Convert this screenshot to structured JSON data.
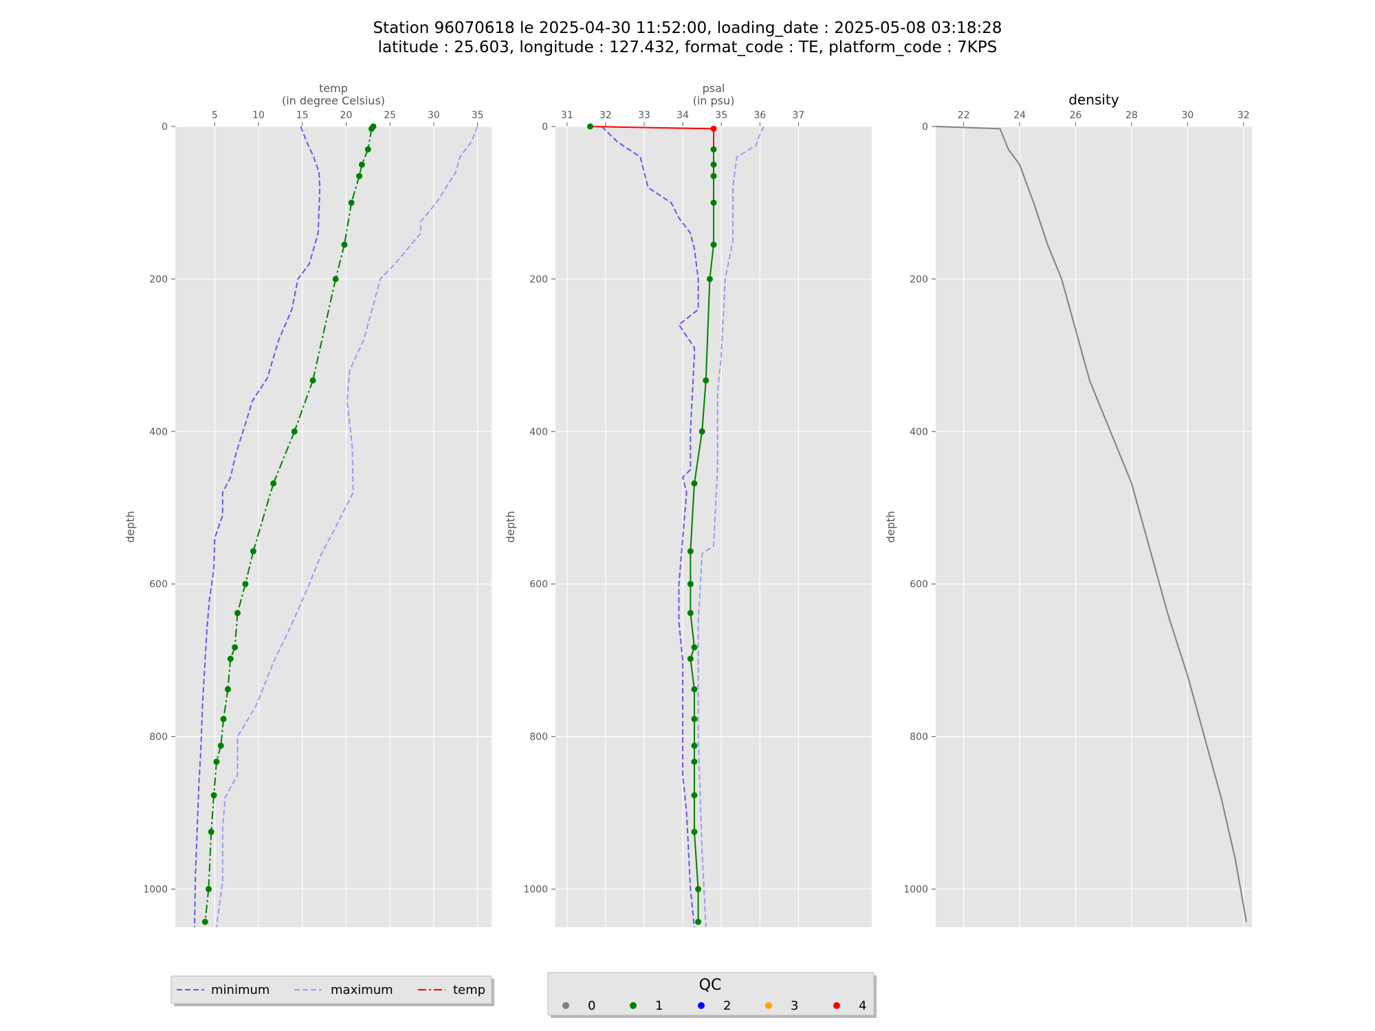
{
  "figure": {
    "title_line1": "Station 96070618 le 2025-04-30 11:52:00, loading_date : 2025-05-08 03:18:28",
    "title_line2": "latitude : 25.603, longitude : 127.432, format_code : TE, platform_code : 7KPS"
  },
  "colors": {
    "panel_bg": "#e5e5e5",
    "grid": "#ffffff",
    "minimum": "#5b5bea",
    "maximum": "#9a9af0",
    "qc_line": "#008000",
    "flagged_line": "#ff0000",
    "density_line": "#808080",
    "qc_colors": [
      "#808080",
      "#008000",
      "#0000ff",
      "#ffa500",
      "#ff0000"
    ]
  },
  "legend": {
    "minimum": "minimum",
    "maximum": "maximum",
    "temp": "temp"
  },
  "qc_legend": {
    "title": "QC",
    "items": [
      "0",
      "1",
      "2",
      "3",
      "4"
    ]
  },
  "chart_data": [
    {
      "type": "line",
      "title_line1": "temp",
      "title_line2": "(in degree Celsius)",
      "ylabel": "depth",
      "xlim": [
        0.5,
        36.6
      ],
      "ylim": [
        1050,
        0
      ],
      "xticks": [
        5,
        10,
        15,
        20,
        25,
        30,
        35
      ],
      "yticks": [
        0,
        200,
        400,
        600,
        800,
        1000
      ],
      "grid": true,
      "series": [
        {
          "name": "minimum",
          "style": "dashed",
          "x": [
            14.8,
            15.5,
            16.3,
            16.9,
            17.0,
            16.8,
            15.8,
            14.5,
            13.8,
            12.3,
            11.0,
            9.3,
            8.5,
            7.4,
            6.8,
            5.9,
            5.9,
            5.0,
            4.9,
            4.4,
            4.1,
            3.9,
            3.6,
            3.4,
            3.2,
            3.0,
            2.8,
            2.7
          ],
          "y": [
            0,
            20,
            40,
            60,
            80,
            140,
            180,
            200,
            240,
            280,
            330,
            360,
            390,
            430,
            460,
            480,
            510,
            540,
            580,
            620,
            660,
            700,
            760,
            820,
            860,
            920,
            980,
            1050
          ]
        },
        {
          "name": "maximum",
          "style": "dashed",
          "x": [
            35.0,
            34.3,
            33.0,
            32.5,
            30.3,
            28.5,
            28.5,
            25.6,
            23.9,
            22.0,
            20.4,
            20.1,
            20.7,
            20.8,
            18.6,
            17.2,
            15.8,
            13.5,
            11.8,
            9.7,
            7.6,
            7.6,
            6.2,
            5.9,
            5.9,
            5.2
          ],
          "y": [
            0,
            20,
            40,
            60,
            100,
            125,
            140,
            180,
            200,
            280,
            320,
            360,
            420,
            480,
            530,
            560,
            600,
            660,
            700,
            760,
            800,
            850,
            880,
            920,
            990,
            1050
          ]
        },
        {
          "name": "temp",
          "style": "dashdot",
          "x": [
            23.1,
            22.9,
            22.5,
            21.8,
            21.5,
            20.6,
            19.8,
            18.8,
            16.2,
            14.1,
            11.7,
            9.4,
            8.5,
            7.6,
            7.3,
            6.8,
            6.5,
            6.0,
            5.7,
            5.2,
            4.9,
            4.6,
            4.3,
            3.9
          ],
          "y": [
            0,
            3,
            30,
            50,
            65,
            100,
            155,
            200,
            333,
            400,
            468,
            557,
            600,
            638,
            683,
            698,
            738,
            777,
            812,
            833,
            877,
            925,
            1000,
            1043
          ],
          "qc": [
            1,
            1,
            1,
            1,
            1,
            1,
            1,
            1,
            1,
            1,
            1,
            1,
            1,
            1,
            1,
            1,
            1,
            1,
            1,
            1,
            1,
            1,
            1,
            1
          ]
        }
      ]
    },
    {
      "type": "line",
      "title_line1": "psal",
      "title_line2": "(in psu)",
      "ylabel": "depth",
      "xlim": [
        30.7,
        38.9
      ],
      "ylim": [
        1050,
        0
      ],
      "xticks": [
        31,
        32,
        33,
        34,
        35,
        36,
        37
      ],
      "yticks": [
        0,
        200,
        400,
        600,
        800,
        1000
      ],
      "grid": true,
      "series": [
        {
          "name": "minimum",
          "style": "dashed",
          "x": [
            31.9,
            32.3,
            32.9,
            33.1,
            33.7,
            33.9,
            34.2,
            34.3,
            34.4,
            34.4,
            33.9,
            34.3,
            34.3,
            34.2,
            34.2,
            34.0,
            34.1,
            33.9,
            33.9,
            34.0,
            34.0,
            34.0,
            34.0,
            34.1,
            34.2,
            34.3
          ],
          "y": [
            0,
            20,
            40,
            80,
            100,
            120,
            140,
            160,
            200,
            240,
            260,
            290,
            300,
            400,
            450,
            460,
            480,
            600,
            650,
            700,
            750,
            800,
            850,
            900,
            1000,
            1050
          ]
        },
        {
          "name": "maximum",
          "style": "dashed",
          "x": [
            36.1,
            36.0,
            35.9,
            35.4,
            35.3,
            35.3,
            35.1,
            35.0,
            34.9,
            34.9,
            34.8,
            34.5,
            34.4,
            34.4,
            34.5,
            34.6
          ],
          "y": [
            0,
            10,
            25,
            40,
            80,
            150,
            200,
            300,
            350,
            450,
            550,
            560,
            650,
            800,
            950,
            1050
          ]
        },
        {
          "name": "psal",
          "style": "solid",
          "x": [
            31.6,
            34.8,
            34.8,
            34.8,
            34.8,
            34.8,
            34.8,
            34.7,
            34.6,
            34.5,
            34.3,
            34.2,
            34.2,
            34.2,
            34.3,
            34.2,
            34.3,
            34.3,
            34.3,
            34.3,
            34.3,
            34.3,
            34.4,
            34.4
          ],
          "y": [
            0,
            3,
            30,
            50,
            65,
            100,
            155,
            200,
            333,
            400,
            468,
            557,
            600,
            638,
            683,
            698,
            738,
            777,
            812,
            833,
            877,
            925,
            1000,
            1043
          ],
          "qc": [
            1,
            4,
            1,
            1,
            1,
            1,
            1,
            1,
            1,
            1,
            1,
            1,
            1,
            1,
            1,
            1,
            1,
            1,
            1,
            1,
            1,
            1,
            1,
            1
          ]
        }
      ]
    },
    {
      "type": "line",
      "title": "density",
      "ylabel": "depth",
      "xlim": [
        21.0,
        32.3
      ],
      "ylim": [
        1050,
        0
      ],
      "xticks": [
        22,
        24,
        26,
        28,
        30,
        32
      ],
      "yticks": [
        0,
        200,
        400,
        600,
        800,
        1000
      ],
      "grid": true,
      "series": [
        {
          "name": "density",
          "style": "solid",
          "x": [
            21.0,
            23.3,
            23.6,
            24.0,
            24.5,
            25.0,
            25.5,
            26.5,
            28.0,
            29.3,
            30.0,
            30.6,
            31.2,
            31.7,
            32.1
          ],
          "y": [
            0,
            3,
            30,
            50,
            100,
            155,
            200,
            333,
            468,
            640,
            720,
            800,
            880,
            960,
            1043
          ]
        }
      ]
    }
  ]
}
